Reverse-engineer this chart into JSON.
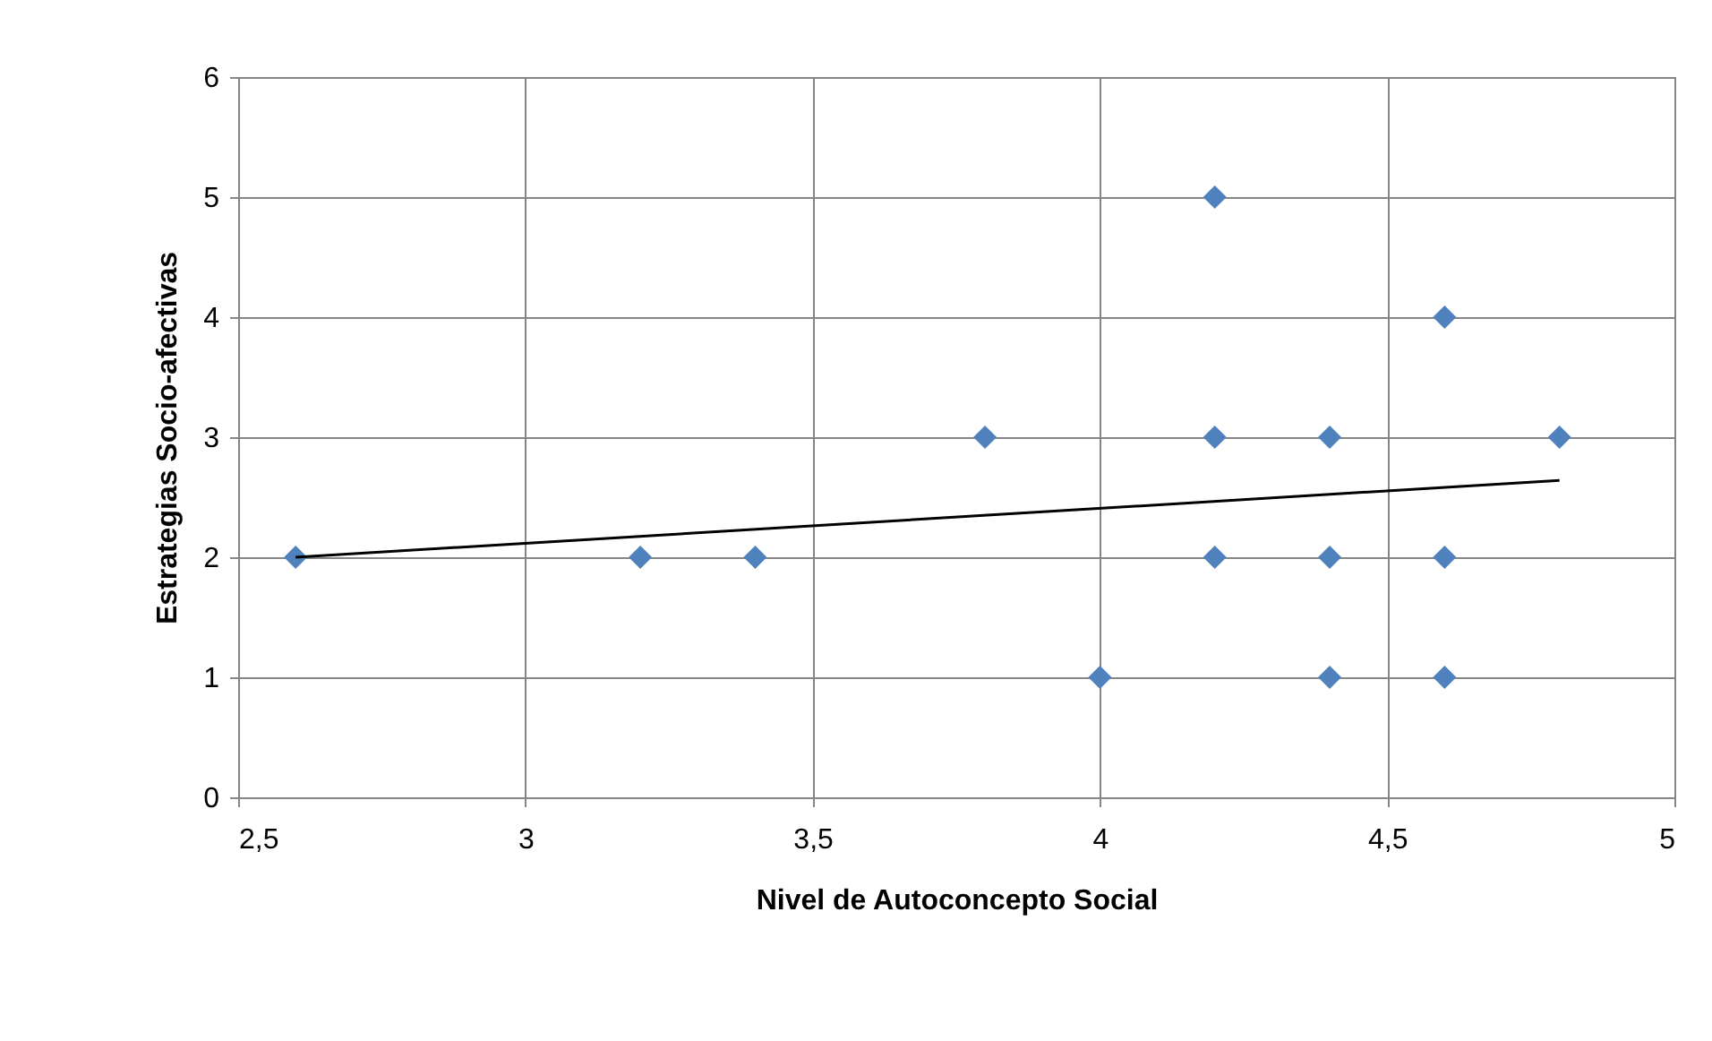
{
  "chart_data": {
    "type": "scatter",
    "xlabel": "Nivel de Autoconcepto Social",
    "ylabel": "Estrategias Socio-afectivas",
    "xlim": [
      2.5,
      5
    ],
    "xticks": [
      {
        "value": 2.5,
        "label": "2,5"
      },
      3,
      {
        "value": 3.5,
        "label": "3,5"
      },
      4,
      {
        "value": 4.5,
        "label": "4,5"
      },
      5
    ],
    "ylim": [
      0,
      6
    ],
    "yticks": [
      0,
      1,
      2,
      3,
      4,
      5,
      6
    ],
    "grid": true,
    "series": [
      {
        "marker": "diamond",
        "color": "#4f81bd",
        "x": [
          2.6,
          3.2,
          3.4,
          3.8,
          4,
          4.2,
          4.2,
          4.2,
          4.4,
          4.4,
          4.4,
          4.6,
          4.6,
          4.6,
          4.8
        ],
        "values": [
          2,
          2,
          2,
          3,
          1,
          5,
          3,
          2,
          3,
          2,
          1,
          4,
          2,
          1,
          3
        ]
      },
      {
        "type": "line",
        "color": "#000000",
        "x": [
          2.6,
          4.8
        ],
        "values": [
          2.0,
          2.64
        ]
      }
    ]
  }
}
